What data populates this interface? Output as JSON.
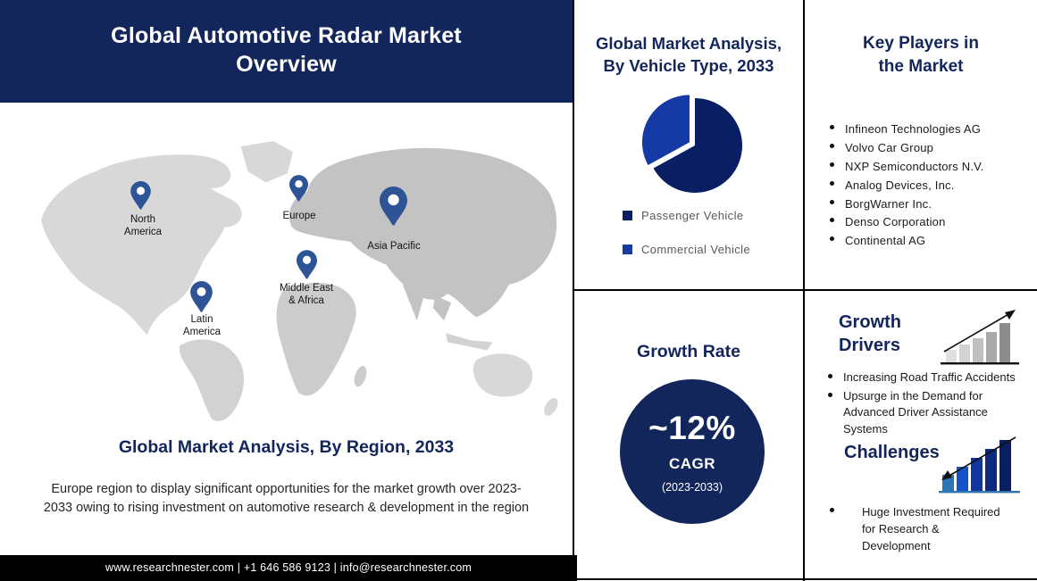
{
  "header": {
    "title": "Global Automotive Radar Market\nOverview"
  },
  "map": {
    "pin_icon": "location-pin-icon",
    "regions": [
      {
        "label": "North\nAmerica"
      },
      {
        "label": "Europe"
      },
      {
        "label": "Asia Pacific"
      },
      {
        "label": "Middle East\n& Africa"
      },
      {
        "label": "Latin\nAmerica"
      }
    ]
  },
  "region_analysis": {
    "heading": "Global Market Analysis, By Region, 2033",
    "paragraph": "Europe region to display significant opportunities for the market growth over 2023-2033 owing to rising investment on automotive research & development in the region"
  },
  "footer": {
    "text": "www.researchnester.com  | +1 646 586 9123 | info@researchnester.com"
  },
  "vehicle_type": {
    "heading": "Global Market Analysis,\nBy Vehicle Type, 2033",
    "legend": [
      {
        "label": "Passenger Vehicle",
        "color": "#0a1f63"
      },
      {
        "label": "Commercial Vehicle",
        "color": "#1539a5"
      }
    ]
  },
  "chart_data": {
    "type": "pie",
    "title": "Global Market Analysis, By Vehicle Type, 2033",
    "labels": [
      "Passenger Vehicle",
      "Commercial Vehicle"
    ],
    "values": [
      67,
      33
    ],
    "colors": [
      "#0a1f63",
      "#1539a5"
    ],
    "exploded_slice": 1,
    "start_angle_deg": 0,
    "legend_position": "bottom-left"
  },
  "key_players": {
    "heading": "Key Players in\nthe Market",
    "items": [
      "Infineon Technologies AG",
      "Volvo Car Group",
      "NXP Semiconductors N.V.",
      "Analog Devices, Inc.",
      "BorgWarner Inc.",
      "Denso Corporation",
      "Continental AG"
    ]
  },
  "growth_rate": {
    "heading": "Growth Rate",
    "value": "~12%",
    "metric": "CAGR",
    "period": "(2023-2033)"
  },
  "growth_drivers": {
    "heading": "Growth\nDrivers",
    "icon": "ascending-bar-chart-up-arrow-icon",
    "items": [
      "Increasing Road Traffic Accidents",
      "Upsurge in the Demand for Advanced Driver Assistance Systems"
    ]
  },
  "challenges": {
    "heading": "Challenges",
    "icon": "ascending-bar-chart-down-arrow-icon",
    "items": [
      "Huge Investment Required for Research & Development"
    ]
  },
  "colors": {
    "navy": "#13265c",
    "pie_dark": "#0a1f63",
    "pie_blue": "#1539a5",
    "pin_blue": "#2e5496",
    "footer_bg": "#000000",
    "map_light_gray": "#d8d8d8",
    "map_dark_gray": "#c3c3c3"
  }
}
